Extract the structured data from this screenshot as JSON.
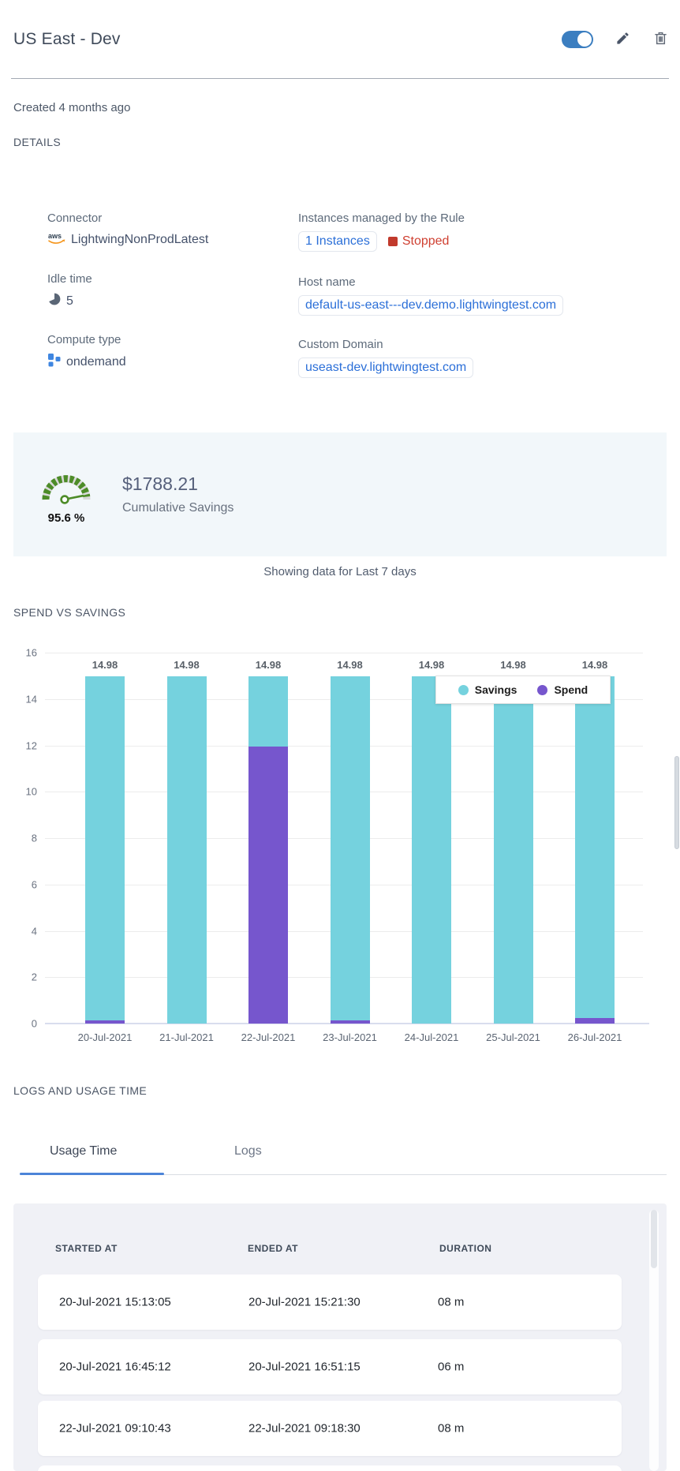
{
  "header": {
    "title": "US East - Dev",
    "toggle_state": "on"
  },
  "created_note": "Created 4 months ago",
  "section_labels": {
    "details": "DETAILS",
    "spend_vs_savings": "SPEND VS SAVINGS",
    "logs_and_usage": "LOGS AND USAGE TIME"
  },
  "details": {
    "connector": {
      "label": "Connector",
      "value": "LightwingNonProdLatest",
      "icon": "aws-logo"
    },
    "idle_time": {
      "label": "Idle time",
      "value": "5"
    },
    "compute_type": {
      "label": "Compute type",
      "value": "ondemand"
    },
    "instances": {
      "label": "Instances managed by the Rule",
      "link": "1 Instances",
      "status": "Stopped"
    },
    "host_name": {
      "label": "Host name",
      "value": "default-us-east---dev.demo.lightwingtest.com"
    },
    "custom_domain": {
      "label": "Custom Domain",
      "value": "useast-dev.lightwingtest.com"
    }
  },
  "savings_summary": {
    "percent": "95.6 %",
    "amount": "$1788.21",
    "caption": "Cumulative Savings"
  },
  "period_note": "Showing data for Last 7 days",
  "chart_data": {
    "type": "bar",
    "stacked": true,
    "title": "SPEND VS SAVINGS",
    "categories": [
      "20-Jul-2021",
      "21-Jul-2021",
      "22-Jul-2021",
      "23-Jul-2021",
      "24-Jul-2021",
      "25-Jul-2021",
      "26-Jul-2021"
    ],
    "series": [
      {
        "name": "Spend",
        "color": "#7656cd",
        "values": [
          0.12,
          0,
          11.95,
          0.12,
          0,
          0,
          0.25
        ]
      },
      {
        "name": "Savings",
        "color": "#75d2de",
        "values": [
          14.86,
          14.98,
          3.03,
          14.86,
          14.98,
          14.98,
          14.73
        ]
      }
    ],
    "bar_total_labels": [
      "14.98",
      "14.98",
      "14.98",
      "14.98",
      "14.98",
      "14.98",
      "14.98"
    ],
    "ylim": [
      0,
      16
    ],
    "yticks": [
      0,
      2,
      4,
      6,
      8,
      10,
      12,
      14,
      16
    ],
    "grid": true,
    "legend_position": "top-right-inset",
    "legend": [
      "Savings",
      "Spend"
    ]
  },
  "tabs": [
    {
      "label": "Usage Time",
      "active": true
    },
    {
      "label": "Logs",
      "active": false
    }
  ],
  "usage_table": {
    "columns": [
      "STARTED AT",
      "ENDED AT",
      "DURATION"
    ],
    "rows": [
      {
        "started_at": "20-Jul-2021 15:13:05",
        "ended_at": "20-Jul-2021 15:21:30",
        "duration": "08 m"
      },
      {
        "started_at": "20-Jul-2021 16:45:12",
        "ended_at": "20-Jul-2021 16:51:15",
        "duration": "06 m"
      },
      {
        "started_at": "22-Jul-2021 09:10:43",
        "ended_at": "22-Jul-2021 09:18:30",
        "duration": "08 m"
      }
    ]
  },
  "colors": {
    "savings_teal": "#75d2de",
    "spend_purple": "#7656cd",
    "toggle_blue": "#3b7ec0",
    "link_blue": "#2b6fd8",
    "status_red": "#cf3f30",
    "gauge_green": "#4d8c28",
    "panel_blue_bg": "#f2f7fa",
    "table_bg": "#f0f1f6"
  }
}
